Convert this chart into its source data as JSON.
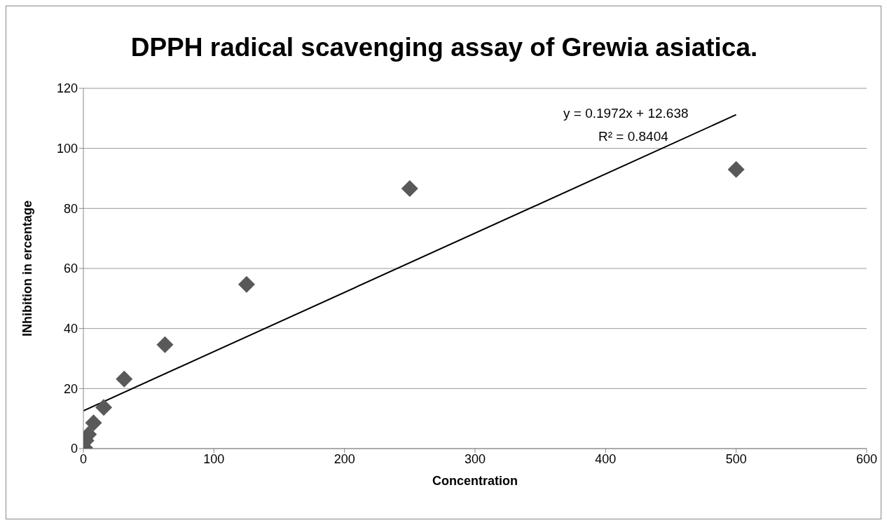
{
  "chart_data": {
    "type": "scatter",
    "title": "DPPH radical scavenging assay of Grewia asiatica.",
    "xlabel": "Concentration",
    "ylabel": "INhibition in ercentage",
    "series": [
      {
        "color": "#595959",
        "marker": "diamond",
        "x": [
          0.98,
          1.95,
          3.9,
          7.8,
          15.6,
          31.25,
          62.5,
          125,
          250,
          500
        ],
        "values": [
          0.3,
          2.7,
          4.7,
          8.6,
          13.7,
          23.2,
          34.6,
          54.7,
          86.6,
          93.0
        ]
      },
      {
        "type": "line",
        "color": "#000000",
        "marker": "none",
        "x": [
          0,
          500
        ],
        "values": [
          12.6,
          111.2
        ]
      }
    ],
    "annotations": [
      "y = 0.1972x + 12.638",
      "R² = 0.8404"
    ],
    "xlim": [
      0,
      600
    ],
    "xticks": [
      0,
      100,
      200,
      300,
      400,
      500,
      600
    ],
    "ylim": [
      0,
      120
    ],
    "yticks": [
      0,
      20,
      40,
      60,
      80,
      100,
      120
    ],
    "grid": "y",
    "legend": false
  }
}
